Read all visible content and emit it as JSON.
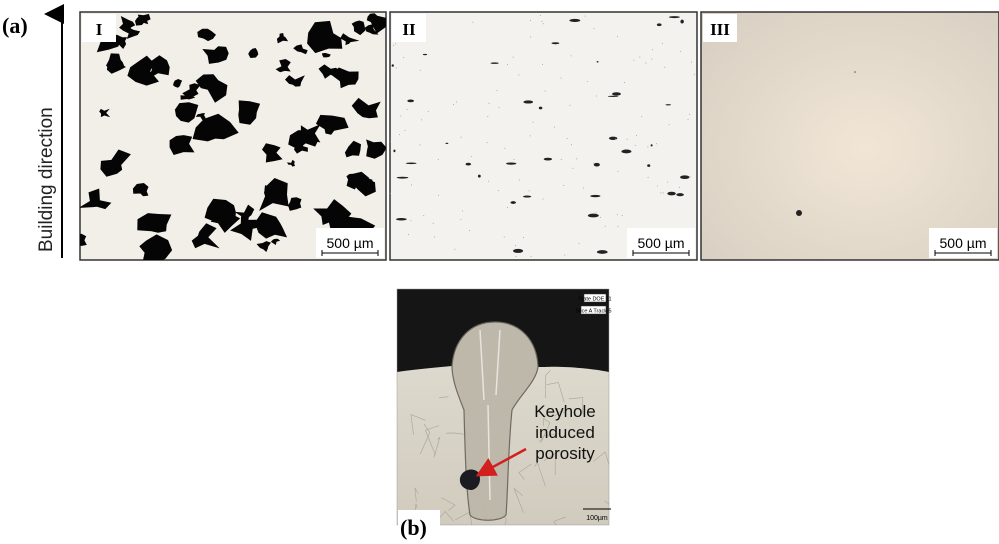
{
  "panel_a": {
    "label": "(a)",
    "axis_label": "Building direction",
    "images": [
      {
        "label": "I",
        "scale_bar": "500 µm"
      },
      {
        "label": "II",
        "scale_bar": "500 µm"
      },
      {
        "label": "III",
        "scale_bar": "500 µm"
      }
    ]
  },
  "panel_b": {
    "label": "(b)",
    "plate_text": [
      "Plate DOE 11",
      "Slice A Track 5"
    ],
    "annotation": [
      "Keyhole",
      "induced",
      "porosity"
    ],
    "scale_bar": "100µm"
  }
}
